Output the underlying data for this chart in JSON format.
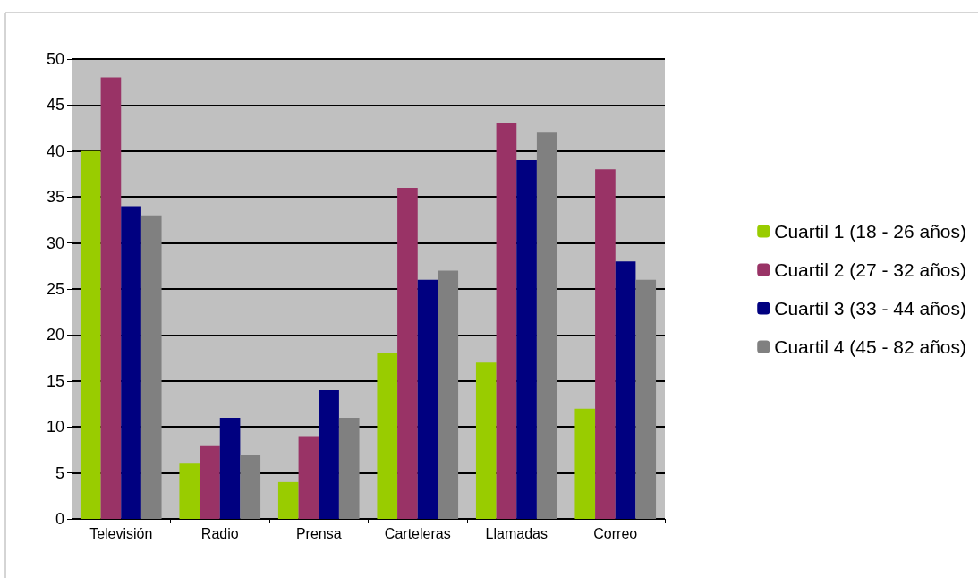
{
  "chart_data": {
    "type": "bar",
    "categories": [
      "Televisión",
      "Radio",
      "Prensa",
      "Carteleras",
      "Llamadas",
      "Correo"
    ],
    "series": [
      {
        "name": "Cuartil 1 (18 - 26 años)",
        "color": "#99cc00",
        "values": [
          40,
          6,
          4,
          18,
          17,
          12
        ]
      },
      {
        "name": "Cuartil 2 (27 - 32 años)",
        "color": "#993366",
        "values": [
          48,
          8,
          9,
          36,
          43,
          38
        ]
      },
      {
        "name": "Cuartil 3 (33 - 44 años)",
        "color": "#000080",
        "values": [
          34,
          11,
          14,
          26,
          39,
          28
        ]
      },
      {
        "name": "Cuartil 4 (45 - 82 años)",
        "color": "#808080",
        "values": [
          33,
          7,
          11,
          27,
          42,
          26
        ]
      }
    ],
    "ylim": [
      0,
      50
    ],
    "yticks": [
      0,
      5,
      10,
      15,
      20,
      25,
      30,
      35,
      40,
      45,
      50
    ],
    "grid": "y",
    "legend": "right"
  }
}
